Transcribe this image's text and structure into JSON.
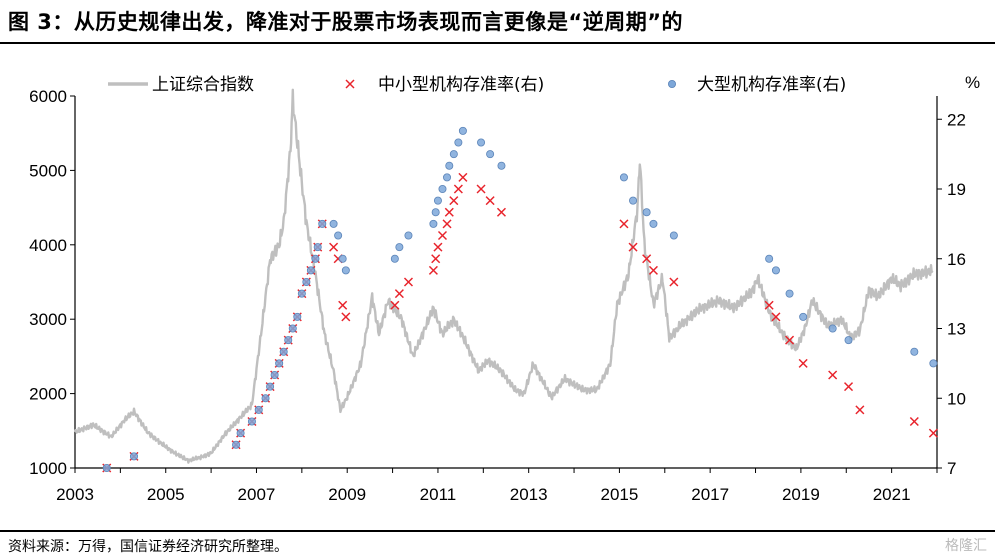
{
  "title": "图 3：从历史规律出发，降准对于股票市场表现而言更像是“逆周期”的",
  "source": "资料来源：万得，国信证券经济研究所整理。",
  "watermark": "格隆汇",
  "chart_data": {
    "type": "line+scatter",
    "legend": [
      {
        "label": "上证综合指数",
        "marker": "line",
        "color": "#bfbfbf"
      },
      {
        "label": "中小型机构存准率(右)",
        "marker": "x",
        "color": "#e8242c"
      },
      {
        "label": "大型机构存准率(右)",
        "marker": "circle",
        "color": "#7da7d9"
      }
    ],
    "legend_position": "top",
    "x_ticks": [
      "2003",
      "2005",
      "2007",
      "2009",
      "2011",
      "2013",
      "2015",
      "2017",
      "2019",
      "2021"
    ],
    "xlim": [
      2003,
      2022
    ],
    "y_left": {
      "ticks": [
        1000,
        2000,
        3000,
        4000,
        5000,
        6000
      ],
      "ylim": [
        1000,
        6000
      ]
    },
    "y_right": {
      "unit": "%",
      "ticks": [
        7,
        10,
        13,
        16,
        19,
        22
      ],
      "ylim": [
        7,
        23
      ]
    },
    "index_series": {
      "name": "上证综合指数",
      "points": [
        [
          2003.0,
          1480
        ],
        [
          2003.4,
          1580
        ],
        [
          2003.8,
          1420
        ],
        [
          2004.1,
          1650
        ],
        [
          2004.3,
          1760
        ],
        [
          2004.6,
          1480
        ],
        [
          2004.9,
          1330
        ],
        [
          2005.2,
          1200
        ],
        [
          2005.5,
          1100
        ],
        [
          2005.8,
          1150
        ],
        [
          2006.0,
          1200
        ],
        [
          2006.3,
          1450
        ],
        [
          2006.6,
          1650
        ],
        [
          2006.9,
          1850
        ],
        [
          2007.1,
          2800
        ],
        [
          2007.3,
          3800
        ],
        [
          2007.5,
          4000
        ],
        [
          2007.6,
          4300
        ],
        [
          2007.75,
          5300
        ],
        [
          2007.8,
          5950
        ],
        [
          2007.95,
          5100
        ],
        [
          2008.1,
          4300
        ],
        [
          2008.3,
          3600
        ],
        [
          2008.5,
          2800
        ],
        [
          2008.7,
          2300
        ],
        [
          2008.85,
          1780
        ],
        [
          2009.0,
          1950
        ],
        [
          2009.3,
          2400
        ],
        [
          2009.55,
          3300
        ],
        [
          2009.7,
          2800
        ],
        [
          2009.9,
          3250
        ],
        [
          2010.2,
          3000
        ],
        [
          2010.45,
          2500
        ],
        [
          2010.8,
          3000
        ],
        [
          2010.9,
          3150
        ],
        [
          2011.1,
          2800
        ],
        [
          2011.35,
          3000
        ],
        [
          2011.6,
          2700
        ],
        [
          2011.9,
          2300
        ],
        [
          2012.1,
          2450
        ],
        [
          2012.4,
          2300
        ],
        [
          2012.7,
          2050
        ],
        [
          2012.9,
          2000
        ],
        [
          2013.1,
          2400
        ],
        [
          2013.5,
          1950
        ],
        [
          2013.8,
          2200
        ],
        [
          2014.2,
          2050
        ],
        [
          2014.5,
          2050
        ],
        [
          2014.8,
          2400
        ],
        [
          2014.95,
          3200
        ],
        [
          2015.2,
          3600
        ],
        [
          2015.4,
          4500
        ],
        [
          2015.45,
          5160
        ],
        [
          2015.55,
          4000
        ],
        [
          2015.65,
          3600
        ],
        [
          2015.75,
          3200
        ],
        [
          2015.95,
          3550
        ],
        [
          2016.1,
          2750
        ],
        [
          2016.4,
          2950
        ],
        [
          2016.8,
          3150
        ],
        [
          2017.2,
          3250
        ],
        [
          2017.5,
          3150
        ],
        [
          2017.9,
          3350
        ],
        [
          2018.05,
          3550
        ],
        [
          2018.3,
          3100
        ],
        [
          2018.6,
          2800
        ],
        [
          2018.9,
          2600
        ],
        [
          2019.1,
          2900
        ],
        [
          2019.25,
          3250
        ],
        [
          2019.6,
          2900
        ],
        [
          2019.9,
          3000
        ],
        [
          2020.1,
          2750
        ],
        [
          2020.3,
          2850
        ],
        [
          2020.5,
          3400
        ],
        [
          2020.7,
          3300
        ],
        [
          2021.0,
          3550
        ],
        [
          2021.2,
          3450
        ],
        [
          2021.5,
          3600
        ],
        [
          2021.9,
          3650
        ]
      ]
    },
    "small_rrr_series": {
      "name": "中小型机构存准率(右)",
      "points": [
        [
          2003.7,
          7.0
        ],
        [
          2004.3,
          7.5
        ],
        [
          2006.55,
          8.0
        ],
        [
          2006.65,
          8.5
        ],
        [
          2006.9,
          9.0
        ],
        [
          2007.05,
          9.5
        ],
        [
          2007.2,
          10.0
        ],
        [
          2007.3,
          10.5
        ],
        [
          2007.4,
          11.0
        ],
        [
          2007.5,
          11.5
        ],
        [
          2007.6,
          12.0
        ],
        [
          2007.7,
          12.5
        ],
        [
          2007.8,
          13.0
        ],
        [
          2007.9,
          13.5
        ],
        [
          2008.0,
          14.5
        ],
        [
          2008.1,
          15.0
        ],
        [
          2008.2,
          15.5
        ],
        [
          2008.3,
          16.0
        ],
        [
          2008.35,
          16.5
        ],
        [
          2008.45,
          17.5
        ],
        [
          2008.7,
          16.5
        ],
        [
          2008.8,
          16.0
        ],
        [
          2008.9,
          14.0
        ],
        [
          2008.97,
          13.5
        ],
        [
          2010.05,
          14.0
        ],
        [
          2010.15,
          14.5
        ],
        [
          2010.35,
          15.0
        ],
        [
          2010.9,
          15.5
        ],
        [
          2010.95,
          16.0
        ],
        [
          2011.0,
          16.5
        ],
        [
          2011.1,
          17.0
        ],
        [
          2011.2,
          17.5
        ],
        [
          2011.25,
          18.0
        ],
        [
          2011.35,
          18.5
        ],
        [
          2011.45,
          19.0
        ],
        [
          2011.55,
          19.5
        ],
        [
          2011.95,
          19.0
        ],
        [
          2012.15,
          18.5
        ],
        [
          2012.4,
          18.0
        ],
        [
          2015.1,
          17.5
        ],
        [
          2015.3,
          16.5
        ],
        [
          2015.6,
          16.0
        ],
        [
          2015.75,
          15.5
        ],
        [
          2016.2,
          15.0
        ],
        [
          2018.3,
          14.0
        ],
        [
          2018.45,
          13.5
        ],
        [
          2018.75,
          12.5
        ],
        [
          2019.05,
          11.5
        ],
        [
          2019.7,
          11.0
        ],
        [
          2020.05,
          10.5
        ],
        [
          2020.3,
          9.5
        ],
        [
          2021.5,
          9.0
        ],
        [
          2021.92,
          8.5
        ]
      ]
    },
    "large_rrr_series": {
      "name": "大型机构存准率(右)",
      "points": [
        [
          2003.7,
          7.0
        ],
        [
          2004.3,
          7.5
        ],
        [
          2006.55,
          8.0
        ],
        [
          2006.65,
          8.5
        ],
        [
          2006.9,
          9.0
        ],
        [
          2007.05,
          9.5
        ],
        [
          2007.2,
          10.0
        ],
        [
          2007.3,
          10.5
        ],
        [
          2007.4,
          11.0
        ],
        [
          2007.5,
          11.5
        ],
        [
          2007.6,
          12.0
        ],
        [
          2007.7,
          12.5
        ],
        [
          2007.8,
          13.0
        ],
        [
          2007.9,
          13.5
        ],
        [
          2008.0,
          14.5
        ],
        [
          2008.1,
          15.0
        ],
        [
          2008.2,
          15.5
        ],
        [
          2008.3,
          16.0
        ],
        [
          2008.35,
          16.5
        ],
        [
          2008.45,
          17.5
        ],
        [
          2008.7,
          17.5
        ],
        [
          2008.8,
          17.0
        ],
        [
          2008.9,
          16.0
        ],
        [
          2008.97,
          15.5
        ],
        [
          2010.05,
          16.0
        ],
        [
          2010.15,
          16.5
        ],
        [
          2010.35,
          17.0
        ],
        [
          2010.9,
          17.5
        ],
        [
          2010.95,
          18.0
        ],
        [
          2011.0,
          18.5
        ],
        [
          2011.1,
          19.0
        ],
        [
          2011.2,
          19.5
        ],
        [
          2011.25,
          20.0
        ],
        [
          2011.35,
          20.5
        ],
        [
          2011.45,
          21.0
        ],
        [
          2011.55,
          21.5
        ],
        [
          2011.95,
          21.0
        ],
        [
          2012.15,
          20.5
        ],
        [
          2012.4,
          20.0
        ],
        [
          2015.1,
          19.5
        ],
        [
          2015.3,
          18.5
        ],
        [
          2015.6,
          18.0
        ],
        [
          2015.75,
          17.5
        ],
        [
          2016.2,
          17.0
        ],
        [
          2018.3,
          16.0
        ],
        [
          2018.45,
          15.5
        ],
        [
          2018.75,
          14.5
        ],
        [
          2019.05,
          13.5
        ],
        [
          2019.7,
          13.0
        ],
        [
          2020.05,
          12.5
        ],
        [
          2021.5,
          12.0
        ],
        [
          2021.92,
          11.5
        ]
      ]
    }
  }
}
